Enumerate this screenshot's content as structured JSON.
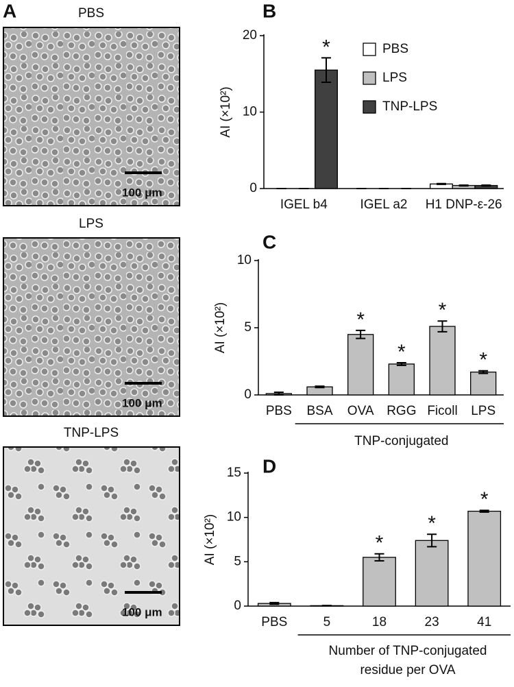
{
  "micrographs": {
    "label": "A",
    "images": [
      {
        "title": "PBS",
        "scale_bar": "100 μm"
      },
      {
        "title": "LPS",
        "scale_bar": "100 μm"
      },
      {
        "title": "TNP-LPS",
        "scale_bar": "100 μm"
      }
    ]
  },
  "chart_data": [
    {
      "type": "bar",
      "panel": "B",
      "ylabel": "AI (×10²)",
      "categories": [
        "IGEL b4",
        "IGEL a2",
        "H1 DNP-ε-26"
      ],
      "series": [
        {
          "name": "PBS",
          "color": "#ffffff",
          "values": [
            0,
            0,
            0.6
          ],
          "errors": [
            0,
            0,
            0.05
          ]
        },
        {
          "name": "LPS",
          "color": "#c0c0c0",
          "values": [
            0,
            0,
            0.4
          ],
          "errors": [
            0,
            0,
            0.05
          ]
        },
        {
          "name": "TNP-LPS",
          "color": "#404040",
          "values": [
            15.5,
            0,
            0.4
          ],
          "errors": [
            1.6,
            0,
            0.05
          ]
        }
      ],
      "ylim": [
        0,
        20
      ],
      "yticks": [
        0,
        10,
        20
      ],
      "legend": "upper right",
      "annotations": [
        {
          "text": "*",
          "index": 0,
          "series": 2
        }
      ]
    },
    {
      "type": "bar",
      "panel": "C",
      "ylabel": "AI (×10²)",
      "categories": [
        "PBS",
        "BSA",
        "OVA",
        "RGG",
        "Ficoll",
        "LPS"
      ],
      "values": [
        0.1,
        0.6,
        4.5,
        2.3,
        5.1,
        1.7
      ],
      "errors": [
        0.1,
        0.05,
        0.3,
        0.1,
        0.4,
        0.1
      ],
      "color": "#c0c0c0",
      "ylim": [
        0,
        10
      ],
      "yticks": [
        0,
        5,
        10
      ],
      "group_label": "TNP-conjugated",
      "annotations": [
        {
          "text": "*",
          "index": 2
        },
        {
          "text": "*",
          "index": 3
        },
        {
          "text": "*",
          "index": 4
        },
        {
          "text": "*",
          "index": 5
        }
      ]
    },
    {
      "type": "bar",
      "panel": "D",
      "ylabel": "AI (×10²)",
      "categories": [
        "PBS",
        "5",
        "18",
        "23",
        "41"
      ],
      "values": [
        0.3,
        0.05,
        5.5,
        7.4,
        10.7
      ],
      "errors": [
        0.1,
        0.02,
        0.4,
        0.7,
        0.1
      ],
      "color": "#c0c0c0",
      "ylim": [
        0,
        15
      ],
      "yticks": [
        0,
        5,
        10,
        15
      ],
      "xlabel": [
        "Number of TNP-conjugated",
        "residue  per OVA"
      ],
      "annotations": [
        {
          "text": "*",
          "index": 2
        },
        {
          "text": "*",
          "index": 3
        },
        {
          "text": "*",
          "index": 4
        }
      ]
    }
  ]
}
